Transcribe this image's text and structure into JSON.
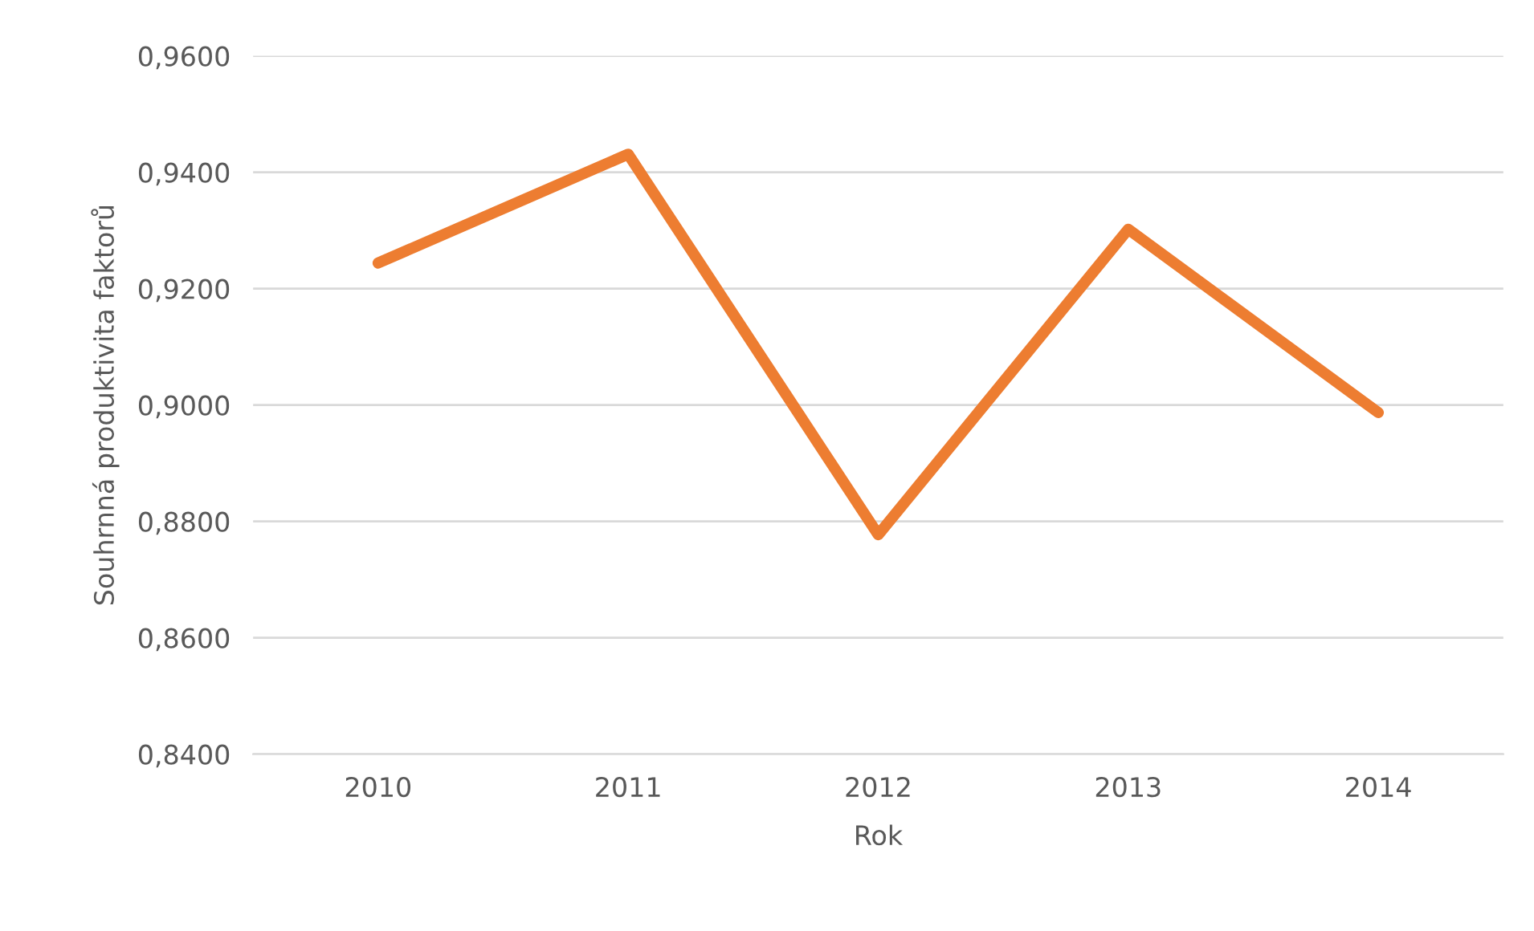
{
  "chart_data": {
    "type": "line",
    "xlabel": "Rok",
    "ylabel": "Souhrnná produktivita faktorů",
    "categories": [
      "2010",
      "2011",
      "2012",
      "2013",
      "2014"
    ],
    "series": [
      {
        "color": "#ed7d31",
        "values": [
          0.9244,
          0.9431,
          0.8777,
          0.9302,
          0.8987
        ]
      }
    ],
    "ylim": [
      0.84,
      0.96
    ],
    "yticks": [
      {
        "value": 0.84,
        "label": "0,8400"
      },
      {
        "value": 0.86,
        "label": "0,8600"
      },
      {
        "value": 0.88,
        "label": "0,8800"
      },
      {
        "value": 0.9,
        "label": "0,9000"
      },
      {
        "value": 0.92,
        "label": "0,9200"
      },
      {
        "value": 0.94,
        "label": "0,9400"
      },
      {
        "value": 0.96,
        "label": "0,9600"
      }
    ],
    "grid": "y",
    "marker": "none",
    "line_style": "solid"
  }
}
